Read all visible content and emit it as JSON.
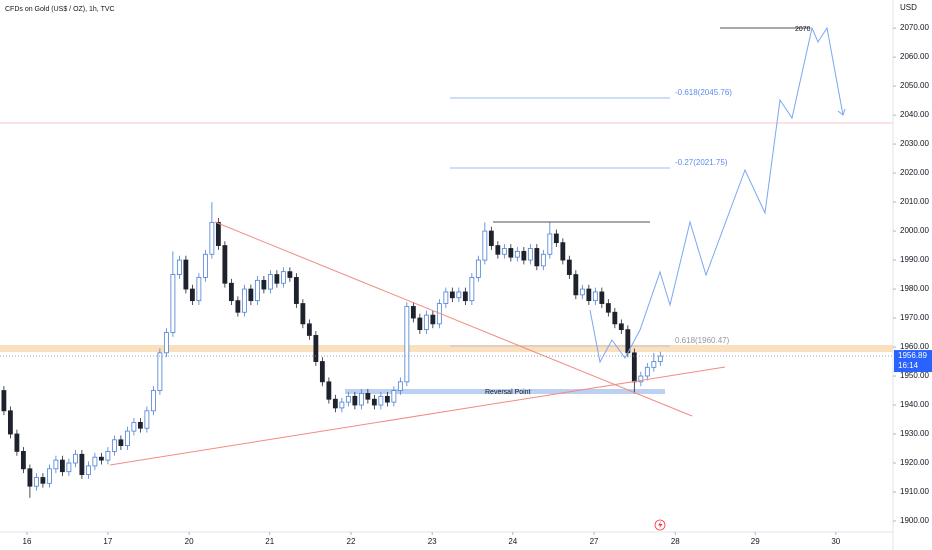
{
  "chart_data": {
    "type": "candlestick",
    "title": "CFDs on Gold (US$ / OZ), 1h, TVC",
    "y_axis_label": "USD",
    "up_color": "#4a7fd6",
    "down_color": "#1e222d",
    "ohlc": [
      [
        1945,
        1946.5,
        1936.5,
        1938
      ],
      [
        1938,
        1939.5,
        1928.5,
        1930
      ],
      [
        1930,
        1931.5,
        1922.5,
        1924
      ],
      [
        1924,
        1925.5,
        1916.5,
        1918
      ],
      [
        1918,
        1919.5,
        1908,
        1912
      ],
      [
        1912,
        1916.5,
        1910.5,
        1915
      ],
      [
        1915,
        1916.5,
        1911.5,
        1913
      ],
      [
        1913,
        1919.5,
        1911.5,
        1918
      ],
      [
        1918,
        1922.5,
        1916.5,
        1921
      ],
      [
        1921,
        1922.5,
        1915.5,
        1917
      ],
      [
        1917,
        1921.5,
        1915.5,
        1920
      ],
      [
        1920,
        1924.5,
        1918.5,
        1923
      ],
      [
        1923,
        1924.5,
        1914.5,
        1916
      ],
      [
        1916,
        1920.5,
        1914.5,
        1919
      ],
      [
        1919,
        1923.5,
        1917.5,
        1922
      ],
      [
        1922,
        1923.5,
        1919.5,
        1921
      ],
      [
        1921,
        1925.5,
        1919.5,
        1924
      ],
      [
        1924,
        1929.5,
        1922.5,
        1928
      ],
      [
        1928,
        1929.5,
        1924.5,
        1926
      ],
      [
        1926,
        1932.5,
        1924.5,
        1931
      ],
      [
        1931,
        1935.5,
        1929.5,
        1934
      ],
      [
        1934,
        1935.5,
        1930.5,
        1932
      ],
      [
        1932,
        1939.5,
        1930.5,
        1938
      ],
      [
        1938,
        1946.5,
        1936.5,
        1945
      ],
      [
        1945,
        1959.5,
        1943.5,
        1958
      ],
      [
        1958,
        1966.5,
        1956.5,
        1965
      ],
      [
        1965,
        1993,
        1963.5,
        1985
      ],
      [
        1985,
        1991.5,
        1983.5,
        1990
      ],
      [
        1990,
        1991.5,
        1978.5,
        1980
      ],
      [
        1980,
        1981.5,
        1974.5,
        1976
      ],
      [
        1976,
        1985.5,
        1974.5,
        1984
      ],
      [
        1984,
        1993.5,
        1982.5,
        1992
      ],
      [
        1992,
        2010,
        1990.5,
        2003
      ],
      [
        2003,
        2004.5,
        1993.5,
        1995
      ],
      [
        1995,
        1996.5,
        1980.5,
        1982
      ],
      [
        1982,
        1983.5,
        1974.5,
        1976
      ],
      [
        1976,
        1977.5,
        1970.5,
        1972
      ],
      [
        1972,
        1981.5,
        1970.5,
        1980
      ],
      [
        1980,
        1981.5,
        1974.5,
        1976
      ],
      [
        1976,
        1984.5,
        1974.5,
        1983
      ],
      [
        1983,
        1984.5,
        1978.5,
        1980
      ],
      [
        1980,
        1986.5,
        1978.5,
        1985
      ],
      [
        1985,
        1986.5,
        1980.5,
        1982
      ],
      [
        1982,
        1987.5,
        1980.5,
        1986
      ],
      [
        1986,
        1987.5,
        1982.5,
        1984
      ],
      [
        1984,
        1985.5,
        1973.5,
        1975
      ],
      [
        1975,
        1976.5,
        1966.5,
        1968
      ],
      [
        1968,
        1969.5,
        1962.5,
        1964
      ],
      [
        1964,
        1965.5,
        1953.5,
        1955
      ],
      [
        1955,
        1956.5,
        1946.5,
        1948
      ],
      [
        1948,
        1949.5,
        1940.5,
        1942
      ],
      [
        1942,
        1943.5,
        1937.5,
        1939
      ],
      [
        1939,
        1942.5,
        1937.5,
        1941
      ],
      [
        1941,
        1944.5,
        1939.5,
        1943
      ],
      [
        1943,
        1944.5,
        1938.5,
        1940
      ],
      [
        1940,
        1945.5,
        1938.5,
        1944
      ],
      [
        1944,
        1945.5,
        1940.5,
        1942
      ],
      [
        1942,
        1943.5,
        1938.5,
        1940
      ],
      [
        1940,
        1944.5,
        1938.5,
        1943
      ],
      [
        1943,
        1944.5,
        1939.5,
        1941
      ],
      [
        1941,
        1946.5,
        1939.5,
        1945
      ],
      [
        1945,
        1949.5,
        1943.5,
        1948
      ],
      [
        1948,
        1975.5,
        1946.5,
        1974
      ],
      [
        1974,
        1975.5,
        1968.5,
        1970
      ],
      [
        1970,
        1971.5,
        1964.5,
        1966
      ],
      [
        1966,
        1972.5,
        1964.5,
        1971
      ],
      [
        1971,
        1972.5,
        1966.5,
        1968
      ],
      [
        1968,
        1976.5,
        1966.5,
        1975
      ],
      [
        1975,
        1980.5,
        1973.5,
        1979
      ],
      [
        1979,
        1980.5,
        1975.5,
        1977
      ],
      [
        1977,
        1980.5,
        1975.5,
        1979
      ],
      [
        1979,
        1980.5,
        1974.5,
        1976
      ],
      [
        1976,
        1985.5,
        1974.5,
        1984
      ],
      [
        1984,
        1991.5,
        1982.5,
        1990
      ],
      [
        1990,
        2003,
        1988.5,
        2000
      ],
      [
        2000,
        2001.5,
        1993.5,
        1995
      ],
      [
        1995,
        1996.5,
        1990.5,
        1992
      ],
      [
        1992,
        1995.5,
        1990.5,
        1994
      ],
      [
        1994,
        1995.5,
        1989.5,
        1991
      ],
      [
        1991,
        1994.5,
        1989.5,
        1993
      ],
      [
        1993,
        1994.5,
        1988.5,
        1990
      ],
      [
        1990,
        1995.5,
        1988.5,
        1994
      ],
      [
        1994,
        1995.5,
        1986.5,
        1988
      ],
      [
        1988,
        1993.5,
        1986.5,
        1992
      ],
      [
        1992,
        2003,
        1990.5,
        1999
      ],
      [
        1999,
        2000.5,
        1994.5,
        1996
      ],
      [
        1996,
        1997.5,
        1988.5,
        1990
      ],
      [
        1990,
        1991.5,
        1983.5,
        1985
      ],
      [
        1985,
        1986.5,
        1976.5,
        1978
      ],
      [
        1978,
        1981.5,
        1976.5,
        1980
      ],
      [
        1980,
        1981.5,
        1974.5,
        1976
      ],
      [
        1976,
        1980.5,
        1974.5,
        1979
      ],
      [
        1979,
        1980.5,
        1973.5,
        1975
      ],
      [
        1975,
        1976.5,
        1970.5,
        1972
      ],
      [
        1972,
        1973.5,
        1966.5,
        1968
      ],
      [
        1968,
        1969.5,
        1964.5,
        1966
      ],
      [
        1966,
        1967.5,
        1956.5,
        1958
      ],
      [
        1958,
        1959.5,
        1944,
        1948
      ],
      [
        1948,
        1951.5,
        1946.5,
        1950
      ],
      [
        1950,
        1954.5,
        1948.5,
        1953
      ],
      [
        1953,
        1958,
        1951.5,
        1955
      ],
      [
        1955,
        1958.4,
        1953.5,
        1956.89
      ]
    ],
    "xlim": [
      -0.6,
      136.8
    ],
    "xticks": [
      {
        "value": 3.55,
        "label": "16"
      },
      {
        "value": 16,
        "label": "17"
      },
      {
        "value": 28.5,
        "label": "20"
      },
      {
        "value": 40.9,
        "label": "21"
      },
      {
        "value": 53.4,
        "label": "22"
      },
      {
        "value": 65.9,
        "label": "23"
      },
      {
        "value": 78.3,
        "label": "24"
      },
      {
        "value": 90.8,
        "label": "27"
      },
      {
        "value": 103.3,
        "label": "28"
      },
      {
        "value": 115.6,
        "label": "29"
      },
      {
        "value": 128,
        "label": "30"
      }
    ],
    "ylim": [
      1896.2,
      2079.7
    ],
    "yticks": [
      {
        "value": 1900,
        "label": "1900.00"
      },
      {
        "value": 1910,
        "label": "1910.00"
      },
      {
        "value": 1920,
        "label": "1920.00"
      },
      {
        "value": 1930,
        "label": "1930.00"
      },
      {
        "value": 1940,
        "label": "1940.00"
      },
      {
        "value": 1950,
        "label": "1950.00"
      },
      {
        "value": 1960,
        "label": "1960.00"
      },
      {
        "value": 1970,
        "label": "1970.00"
      },
      {
        "value": 1980,
        "label": "1980.00"
      },
      {
        "value": 1990,
        "label": "1990.00"
      },
      {
        "value": 2000,
        "label": "2000.00"
      },
      {
        "value": 2010,
        "label": "2010.00"
      },
      {
        "value": 2020,
        "label": "2020.00"
      },
      {
        "value": 2030,
        "label": "2030.00"
      },
      {
        "value": 2040,
        "label": "2040.00"
      },
      {
        "value": 2050,
        "label": "2050.00"
      },
      {
        "value": 2060,
        "label": "2060.00"
      },
      {
        "value": 2070,
        "label": "2070.00"
      }
    ],
    "grid": false,
    "last_price": 1956.89,
    "countdown": "16:14",
    "annotations": {
      "fib_upper": "-0.618(2045.76)",
      "fib_mid": "-0.27(2021.75)",
      "fib_lower": "0.618(1960.47)",
      "target": "2070",
      "reversal": "Reversal Point"
    }
  }
}
